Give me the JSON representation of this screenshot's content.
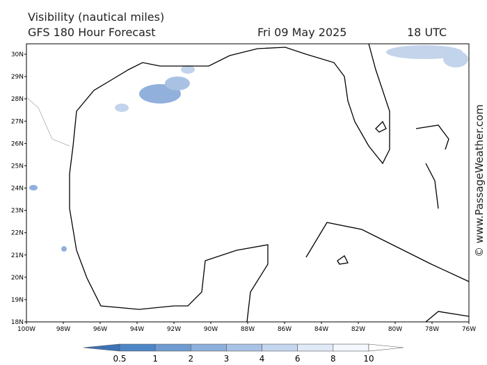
{
  "header": {
    "title": "Visibility (nautical miles)",
    "subtitle": "GFS 180 Hour Forecast",
    "date": "Fri 09 May 2025",
    "time": "18 UTC"
  },
  "map": {
    "lat_labels": [
      "30N",
      "29N",
      "28N",
      "27N",
      "26N",
      "25N",
      "24N",
      "23N",
      "22N",
      "21N",
      "20N",
      "19N",
      "18N"
    ],
    "lon_labels": [
      "100W",
      "98W",
      "96W",
      "94W",
      "92W",
      "90W",
      "88W",
      "86W",
      "84W",
      "82W",
      "80W",
      "78W",
      "76W"
    ]
  },
  "colorbar": {
    "labels": [
      "0.5",
      "1",
      "2",
      "3",
      "4",
      "6",
      "8",
      "10"
    ]
  },
  "credit": "© www.PassageWeather.com"
}
